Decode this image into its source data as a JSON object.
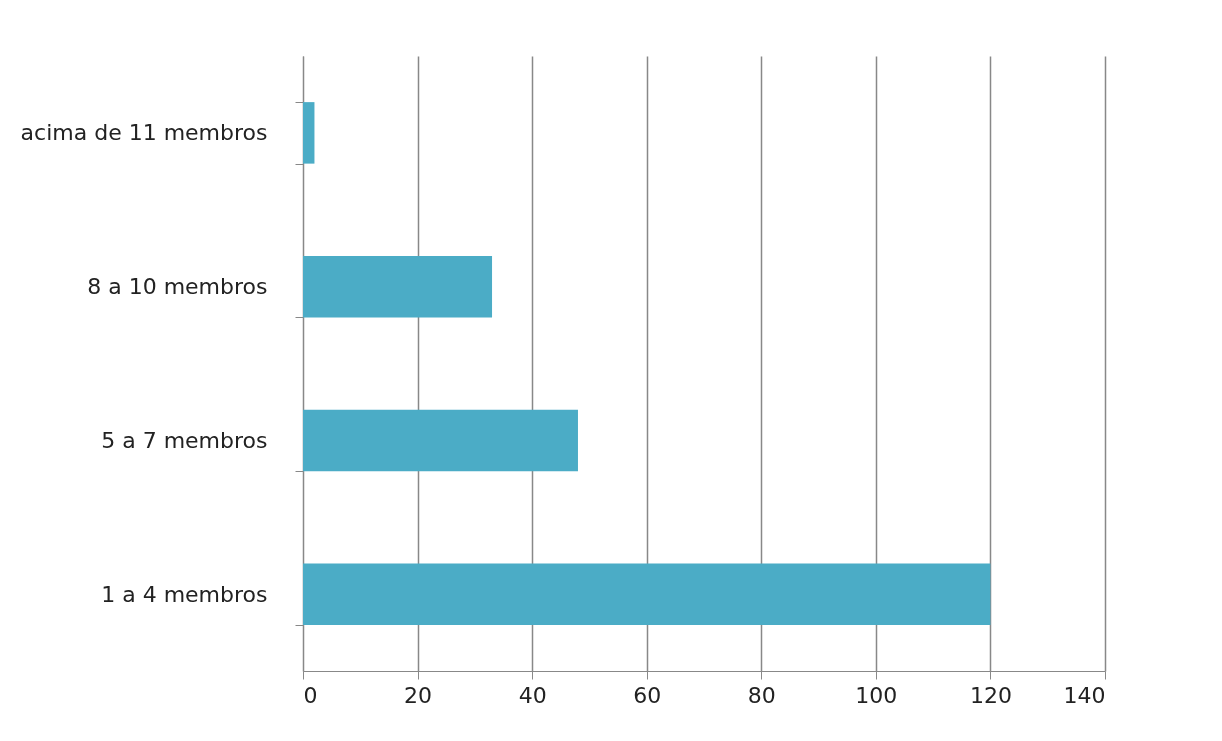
{
  "chart_data": {
    "type": "bar",
    "orientation": "horizontal",
    "categories": [
      "acima de 11 membros",
      "8 a 10 membros",
      "5 a 7 membros",
      "1 a 4 membros"
    ],
    "values": [
      2,
      33,
      48,
      120
    ],
    "color": "#4bacc6",
    "xlim": [
      0,
      140
    ],
    "xticks": [
      0,
      20,
      40,
      60,
      80,
      100,
      120,
      140
    ],
    "grid": "x"
  }
}
